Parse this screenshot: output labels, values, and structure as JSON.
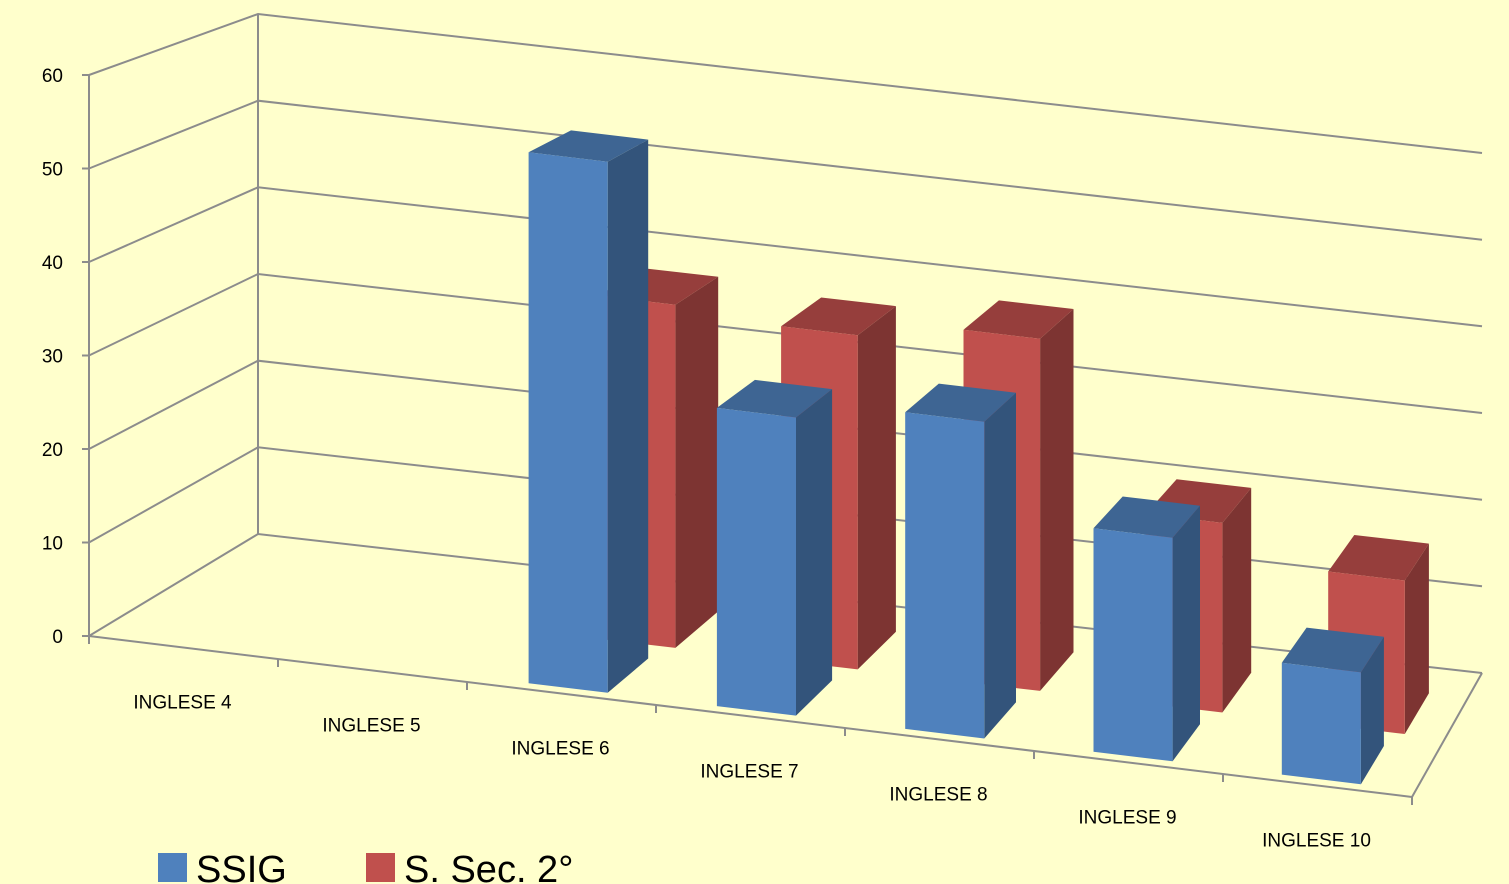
{
  "chart_data": {
    "type": "bar",
    "categories": [
      "INGLESE 4",
      "INGLESE 5",
      "INGLESE 6",
      "INGLESE 7",
      "INGLESE 8",
      "INGLESE 9",
      "INGLESE 10"
    ],
    "series": [
      {
        "name": "SSIG",
        "color": "#4F81BD",
        "values": [
          0,
          0,
          57,
          32,
          34,
          24,
          12
        ]
      },
      {
        "name": "S. Sec. 2°",
        "color": "#C0504D",
        "values": [
          0,
          0,
          38,
          37,
          39,
          21,
          17
        ]
      }
    ],
    "ylim": [
      0,
      60
    ],
    "yticks": [
      0,
      10,
      20,
      30,
      40,
      50,
      60
    ],
    "grid": true,
    "three_d": true,
    "legend_position": "bottom-left"
  }
}
